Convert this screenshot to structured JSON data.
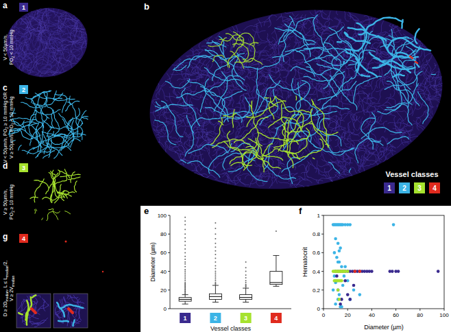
{
  "figure": {
    "panels": [
      {
        "letter": "a",
        "class_label": "1",
        "class_color": "#3a2a8e",
        "condition": [
          [
            "V < 50µm/s,"
          ],
          [
            "PO",
            "2",
            " < 10 mmHg"
          ]
        ]
      },
      {
        "letter": "c",
        "class_label": "2",
        "class_color": "#3cb4e6",
        "condition": [
          [
            "V < 50µm/s, PO",
            "2",
            " ≥ 10 mmHg OR"
          ],
          [
            "V ≥ 50µm/s, PO",
            "2",
            " < 10 mmHg"
          ]
        ]
      },
      {
        "letter": "d",
        "class_label": "3",
        "class_color": "#a6e22e",
        "condition": [
          [
            "V ≥ 50µm/s,"
          ],
          [
            "PO",
            "2",
            " ≥ 10 mmHg"
          ]
        ]
      },
      {
        "letter": "g",
        "class_label": "4",
        "class_color": "#e02a1e",
        "condition": [
          [
            "D ≥ 2D",
            "median",
            ", L ≤ L",
            "median",
            "/2,"
          ],
          [
            "V ≥ 2V",
            "median"
          ]
        ]
      }
    ],
    "map_panel": {
      "letter": "b",
      "legend_title": "Vessel classes",
      "classes": [
        "1",
        "2",
        "3",
        "4"
      ],
      "colors": [
        "#3a2a8e",
        "#3cb4e6",
        "#a6e22e",
        "#e02a1e"
      ]
    },
    "chart_letters": [
      "e",
      "f"
    ]
  },
  "chart_data": [
    {
      "type": "box",
      "xlabel": "Vessel classes",
      "ylabel": "Diameter (µm)",
      "categories": [
        "1",
        "2",
        "3",
        "4"
      ],
      "colors": [
        "#3a2a8e",
        "#3cb4e6",
        "#a6e22e",
        "#e02a1e"
      ],
      "min": [
        5,
        7,
        7,
        24
      ],
      "q1": [
        8,
        10,
        10,
        26
      ],
      "median": [
        10,
        13,
        12,
        28
      ],
      "q3": [
        12,
        16,
        15,
        40
      ],
      "max": [
        15,
        25,
        22,
        57
      ],
      "outliers": [
        [
          16,
          17,
          18,
          19,
          20,
          21,
          22,
          23,
          24,
          25,
          26,
          27,
          28,
          30,
          32,
          34,
          36,
          38,
          40,
          42,
          45,
          48,
          50,
          53,
          56,
          60,
          64,
          68,
          72,
          76,
          80,
          85,
          90,
          94,
          98
        ],
        [
          26,
          27,
          28,
          30,
          32,
          34,
          36,
          38,
          40,
          43,
          46,
          50,
          54,
          58,
          62,
          66,
          70,
          75,
          80,
          86,
          92
        ],
        [
          23,
          24,
          25,
          26,
          28,
          30,
          33,
          36,
          40,
          44,
          50
        ],
        [
          83
        ]
      ],
      "ylim": [
        0,
        100
      ],
      "yticks": [
        0,
        20,
        40,
        60,
        80,
        100
      ]
    },
    {
      "type": "scatter",
      "xlabel": "Diameter (µm)",
      "ylabel": "Hematocrit",
      "xlim": [
        0,
        100
      ],
      "xticks": [
        0,
        20,
        40,
        60,
        80,
        100
      ],
      "ylim": [
        0,
        1
      ],
      "yticks": [
        0,
        0.2,
        0.4,
        0.6,
        0.8,
        1
      ],
      "series": [
        {
          "color": "#3cb4e6",
          "x": [
            8,
            9,
            10,
            11,
            12,
            13,
            14,
            15,
            16,
            18,
            20,
            22,
            58,
            10,
            12,
            14,
            9,
            11,
            13,
            15,
            17,
            20,
            25,
            30,
            12,
            10,
            14,
            16,
            11,
            13,
            9,
            12,
            18,
            22,
            15,
            10,
            8,
            13
          ],
          "values": [
            0.9,
            0.9,
            0.9,
            0.9,
            0.9,
            0.9,
            0.9,
            0.9,
            0.9,
            0.9,
            0.9,
            0.9,
            0.9,
            0.75,
            0.7,
            0.65,
            0.6,
            0.55,
            0.5,
            0.45,
            0.35,
            0.3,
            0.2,
            0.15,
            0.1,
            0.05,
            0.02,
            0.25,
            0.3,
            0.15,
            0.35,
            0.5,
            0.45,
            0.1,
            0.02,
            0.28,
            0.2,
            0.62
          ]
        },
        {
          "color": "#3a2a8e",
          "x": [
            10,
            12,
            14,
            16,
            18,
            20,
            22,
            24,
            26,
            28,
            30,
            32,
            34,
            36,
            38,
            40,
            55,
            57,
            60,
            62,
            95,
            10,
            12,
            15,
            20,
            25,
            14,
            11,
            18,
            22
          ],
          "values": [
            0.4,
            0.4,
            0.4,
            0.4,
            0.4,
            0.4,
            0.4,
            0.4,
            0.4,
            0.4,
            0.4,
            0.4,
            0.4,
            0.4,
            0.4,
            0.4,
            0.4,
            0.4,
            0.4,
            0.4,
            0.4,
            0.3,
            0.2,
            0.1,
            0.15,
            0.25,
            0.05,
            0.35,
            0.3,
            0.1
          ]
        },
        {
          "color": "#a6e22e",
          "x": [
            8,
            9,
            10,
            11,
            12,
            13,
            14,
            15,
            16,
            17,
            18,
            20,
            9,
            10,
            11,
            12,
            13,
            14,
            15,
            12,
            13
          ],
          "values": [
            0.4,
            0.4,
            0.4,
            0.4,
            0.4,
            0.4,
            0.4,
            0.4,
            0.4,
            0.4,
            0.4,
            0.4,
            0.3,
            0.3,
            0.3,
            0.3,
            0.3,
            0.3,
            0.3,
            0.2,
            0.1
          ]
        },
        {
          "color": "#e02a1e",
          "x": [
            26,
            30
          ],
          "values": [
            0.4,
            0.4
          ]
        }
      ]
    }
  ]
}
